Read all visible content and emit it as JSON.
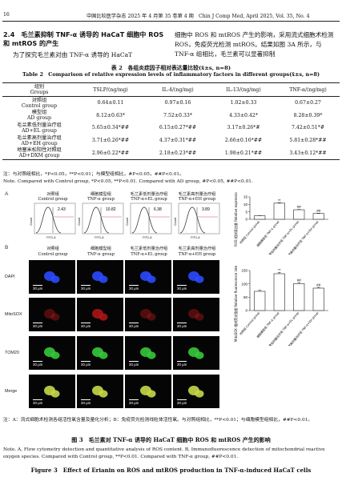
{
  "page_header": {
    "page_number": "16",
    "journal": "中国比较医学杂志 2025 年 4 月第 35 卷第 4 期　Chin J Comp Med, April 2025, Vol. 35, No. 4"
  },
  "section": {
    "heading": "2.4　毛兰素抑制 TNF-α 诱导的 HaCaT 细胞中 ROS 和 mtROS 的产生",
    "left_text": "为了探究毛兰素对由 TNF-α 诱导的 HaCaT",
    "right_text": "细胞中 ROS 和 mtROS 产生的影响，采用流式细胞术检测 ROS，免疫荧光检测 mtROS。结果如图 3A 所示，与 TNF-α 组相比，毛兰素可以显著抑制"
  },
  "table2": {
    "caption_cn": "表 2　各组炎症因子相对表达量比较(x̄±s, n=8)",
    "caption_en": "Table 2　Comparison of relative expression levels of inflammatory factors in different groups(x̄±s, n=8)",
    "headers": [
      "组别\nGroups",
      "TSLP/(ng/mg)",
      "IL-4/(ng/mg)",
      "IL-13/(ng/mg)",
      "TNF-α/(ng/mg)"
    ],
    "rows": [
      [
        "对照组\nControl group",
        "0.64±0.11",
        "0.97±0.16",
        "1.02±0.33",
        "0.67±0.27"
      ],
      [
        "模型组\nAD group",
        "8.12±0.63*",
        "7.52±0.33*",
        "4.33±0.42*",
        "8.28±0.39*"
      ],
      [
        "毛兰素低剂量治疗组\nAD+EL group",
        "5.65±0.34*##",
        "6.15±0.27*##",
        "3.17±0.26*#",
        "7.42±0.51*#"
      ],
      [
        "毛兰素高剂量治疗组\nAD+EH group",
        "3.71±0.26*##",
        "4.37±0.31*##",
        "2.66±0.16*##",
        "5.81±0.28*##"
      ],
      [
        "地塞米松阳性对照组\nAD+DXM group",
        "2.96±0.22*##",
        "2.18±0.23*##",
        "1.98±0.21*##",
        "3.43±0.12*##"
      ]
    ],
    "note_cn": "注：与对照组相比，*P<0.05，**P<0.01；与模型组相比，#P<0.05，##P<0.01。",
    "note_en": "Note. Compared with Control group, *P<0.05, **P<0.01. Compared with AD group, #P<0.05, ##P<0.01."
  },
  "figure3": {
    "panel_a_label": "A",
    "panel_b_label": "B",
    "groups": [
      {
        "cn": "对照组",
        "en": "Control group",
        "pct": "2.43",
        "color": "#222222"
      },
      {
        "cn": "细胞模型组",
        "en": "TNF-α group",
        "pct": "10.82",
        "color": "#222222"
      },
      {
        "cn": "毛兰素低剂量治疗组",
        "en": "TNF-α+EL group",
        "pct": "6.38",
        "color": "#222222"
      },
      {
        "cn": "毛兰素高剂量治疗组",
        "en": "TNF-α+EH group",
        "pct": "3.89",
        "color": "#222222"
      }
    ],
    "fc_axis_x": "FITC-A",
    "fc_axis_y": "Count",
    "micro_rows": [
      "DAPI",
      "MitoSOX",
      "TOM20",
      "Merge"
    ],
    "micro_colors": {
      "DAPI": "#2a4bff",
      "MitoSOX": "#b01818",
      "TOM20": "#37c83a",
      "Merge": "#c8d84a"
    },
    "scale_bar": "30 μm",
    "caption_note_cn": "注：A：流式细胞术检测各组活性氧含量及量化分析；B：免疫荧光检测线粒体活性氧。与对照组相比，**P<0.01；与细胞模型组相比，##P<0.01。",
    "caption_cn": "图 3　毛兰素对 TNF-α 诱导的 HaCaT 细胞中 ROS 和 mtROS 产生的影响",
    "note_en": "Note. A, Flow cytometry detection and quantitative analysis of ROS content. B, Immunofluorescence detection of mitochondrial reactive oxygen species. Compared with Control group, **P<0.01. Compared with TNF-α group, ##P<0.01.",
    "caption_en": "Figure 3　Effect of Erianin on ROS and mtROS production in TNF-α-induced HaCaT cells"
  },
  "chart_data": [
    {
      "type": "bar",
      "ylabel": "ROS 相对表达量 Relative expression level of ROS",
      "categories": [
        "对照组 Control group",
        "细胞模型组 TNF-α group",
        "毛兰素低剂量治疗组 TNF-α+EL group",
        "毛兰素高剂量治疗组 TNF-α+EH group"
      ],
      "values": [
        2.4,
        10.8,
        6.4,
        3.9
      ],
      "errors": [
        0.15,
        0.3,
        0.25,
        0.2
      ],
      "annotations": [
        "",
        "**",
        "##",
        "##"
      ],
      "ylim": [
        0,
        15
      ],
      "yticks": [
        0,
        5,
        10,
        15
      ]
    },
    {
      "type": "bar",
      "ylabel": "MitoSOX 相对荧光强度 Relative fluorescence intensity of MitoSOX",
      "categories": [
        "对照组 Control group",
        "细胞模型组 TNF-α group",
        "毛兰素低剂量治疗组 TNF-α+EL group",
        "毛兰素高剂量治疗组 TNF-α+EH group"
      ],
      "values": [
        72,
        138,
        101,
        84
      ],
      "errors": [
        4,
        5,
        4,
        3
      ],
      "annotations": [
        "",
        "**",
        "##",
        "##"
      ],
      "ylim": [
        0,
        150
      ],
      "yticks": [
        0,
        50,
        100,
        150
      ]
    }
  ]
}
